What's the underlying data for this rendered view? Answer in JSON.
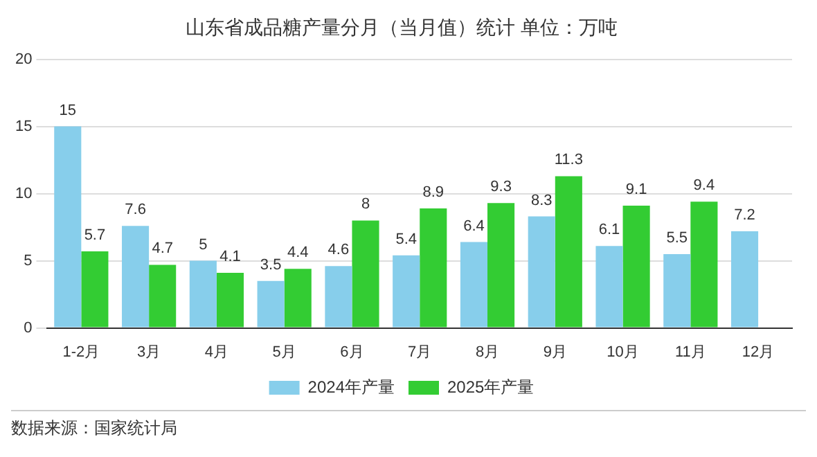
{
  "chart_data": {
    "type": "bar",
    "title": "山东省成品糖产量分月（当月值）统计 单位：万吨",
    "categories": [
      "1-2月",
      "3月",
      "4月",
      "5月",
      "6月",
      "7月",
      "8月",
      "9月",
      "10月",
      "11月",
      "12月"
    ],
    "series": [
      {
        "name": "2024年产量",
        "color": "#87ceeb",
        "values": [
          15,
          7.6,
          5,
          3.5,
          4.6,
          5.4,
          6.4,
          8.3,
          6.1,
          5.5,
          7.2
        ]
      },
      {
        "name": "2025年产量",
        "color": "#33cc33",
        "values": [
          5.7,
          4.7,
          4.1,
          4.4,
          8,
          8.9,
          9.3,
          11.3,
          9.1,
          9.4,
          null
        ]
      }
    ],
    "ylim": [
      0,
      20
    ],
    "yticks": [
      0,
      5,
      10,
      15,
      20
    ],
    "grid": "y",
    "legend": "bottom",
    "data_labels": true,
    "annotations": [
      "数据来源：国家统计局"
    ]
  }
}
